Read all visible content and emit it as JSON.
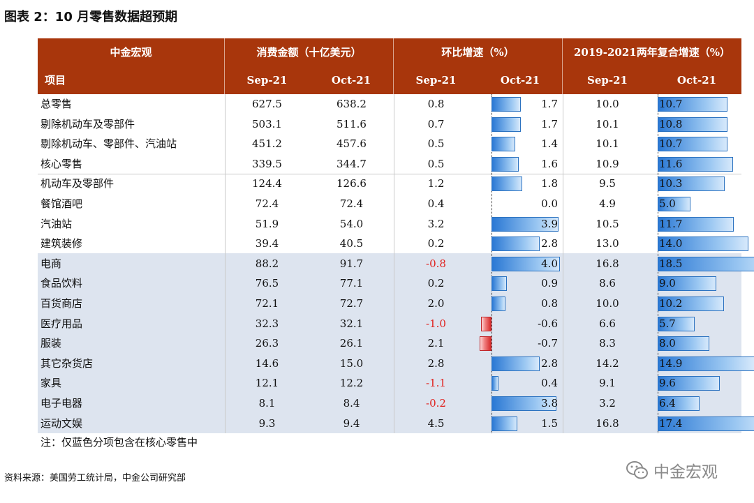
{
  "title": "图表 2：10 月零售数据超预期",
  "header": {
    "row1": [
      "中金宏观",
      "消费金额（十亿美元）",
      "环比增速（%）",
      "2019-2021两年复合增速（%）"
    ],
    "row2": [
      "项目",
      "Sep-21",
      "Oct-21",
      "Sep-21",
      "Oct-21",
      "Sep-21",
      "Oct-21"
    ]
  },
  "rows": [
    {
      "name": "总零售",
      "amt_sep": "627.5",
      "amt_oct": "638.2",
      "mom_sep": "0.8",
      "mom_oct": "1.7",
      "cagr_sep": "10.0",
      "cagr_oct": "10.7"
    },
    {
      "name": "剔除机动车及零部件",
      "amt_sep": "503.1",
      "amt_oct": "511.6",
      "mom_sep": "0.7",
      "mom_oct": "1.7",
      "cagr_sep": "10.1",
      "cagr_oct": "10.8"
    },
    {
      "name": "剔除机动车、零部件、汽油站",
      "amt_sep": "451.2",
      "amt_oct": "457.6",
      "mom_sep": "0.5",
      "mom_oct": "1.4",
      "cagr_sep": "10.1",
      "cagr_oct": "10.7"
    },
    {
      "name": "核心零售",
      "amt_sep": "339.5",
      "amt_oct": "344.7",
      "mom_sep": "0.5",
      "mom_oct": "1.6",
      "cagr_sep": "10.9",
      "cagr_oct": "11.6"
    },
    {
      "name": "机动车及零部件",
      "amt_sep": "124.4",
      "amt_oct": "126.6",
      "mom_sep": "1.2",
      "mom_oct": "1.8",
      "cagr_sep": "9.5",
      "cagr_oct": "10.3"
    },
    {
      "name": "餐馆酒吧",
      "amt_sep": "72.4",
      "amt_oct": "72.4",
      "mom_sep": "0.4",
      "mom_oct": "0.0",
      "cagr_sep": "4.9",
      "cagr_oct": "5.0"
    },
    {
      "name": "汽油站",
      "amt_sep": "51.9",
      "amt_oct": "54.0",
      "mom_sep": "3.2",
      "mom_oct": "3.9",
      "cagr_sep": "10.5",
      "cagr_oct": "11.7"
    },
    {
      "name": "建筑装修",
      "amt_sep": "39.4",
      "amt_oct": "40.5",
      "mom_sep": "0.2",
      "mom_oct": "2.8",
      "cagr_sep": "13.0",
      "cagr_oct": "14.0"
    },
    {
      "name": "电商",
      "amt_sep": "88.2",
      "amt_oct": "91.7",
      "mom_sep": "-0.8",
      "mom_oct": "4.0",
      "cagr_sep": "16.8",
      "cagr_oct": "18.5"
    },
    {
      "name": "食品饮料",
      "amt_sep": "76.5",
      "amt_oct": "77.1",
      "mom_sep": "0.2",
      "mom_oct": "0.9",
      "cagr_sep": "8.6",
      "cagr_oct": "9.0"
    },
    {
      "name": "百货商店",
      "amt_sep": "72.1",
      "amt_oct": "72.7",
      "mom_sep": "2.0",
      "mom_oct": "0.8",
      "cagr_sep": "10.0",
      "cagr_oct": "10.2"
    },
    {
      "name": "医疗用品",
      "amt_sep": "32.3",
      "amt_oct": "32.1",
      "mom_sep": "-1.0",
      "mom_oct": "-0.6",
      "cagr_sep": "6.6",
      "cagr_oct": "5.7"
    },
    {
      "name": "服装",
      "amt_sep": "26.3",
      "amt_oct": "26.1",
      "mom_sep": "2.1",
      "mom_oct": "-0.7",
      "cagr_sep": "8.3",
      "cagr_oct": "8.0"
    },
    {
      "name": "其它杂货店",
      "amt_sep": "14.6",
      "amt_oct": "15.0",
      "mom_sep": "2.8",
      "mom_oct": "2.8",
      "cagr_sep": "14.2",
      "cagr_oct": "14.9"
    },
    {
      "name": "家具",
      "amt_sep": "12.1",
      "amt_oct": "12.2",
      "mom_sep": "-1.1",
      "mom_oct": "0.4",
      "cagr_sep": "9.1",
      "cagr_oct": "9.6"
    },
    {
      "name": "电子电器",
      "amt_sep": "8.1",
      "amt_oct": "8.4",
      "mom_sep": "-0.2",
      "mom_oct": "3.8",
      "cagr_sep": "3.2",
      "cagr_oct": "6.4"
    },
    {
      "name": "运动文娱",
      "amt_sep": "9.3",
      "amt_oct": "9.4",
      "mom_sep": "4.5",
      "mom_oct": "1.5",
      "cagr_sep": "16.8",
      "cagr_oct": "17.4"
    }
  ],
  "note": "注：仅蓝色分项包含在核心零售中",
  "source": "资料来源：美国劳工统计局，中金公司研究部",
  "watermark": {
    "text": "中金宏观",
    "icon": "wechat-icon"
  },
  "colors": {
    "header_bg": "#a8360c",
    "core_shade": "#dde4ef",
    "pos_bar": "#2a78d4",
    "neg_bar": "#d62a2a",
    "neg_text": "#e0201c"
  }
}
